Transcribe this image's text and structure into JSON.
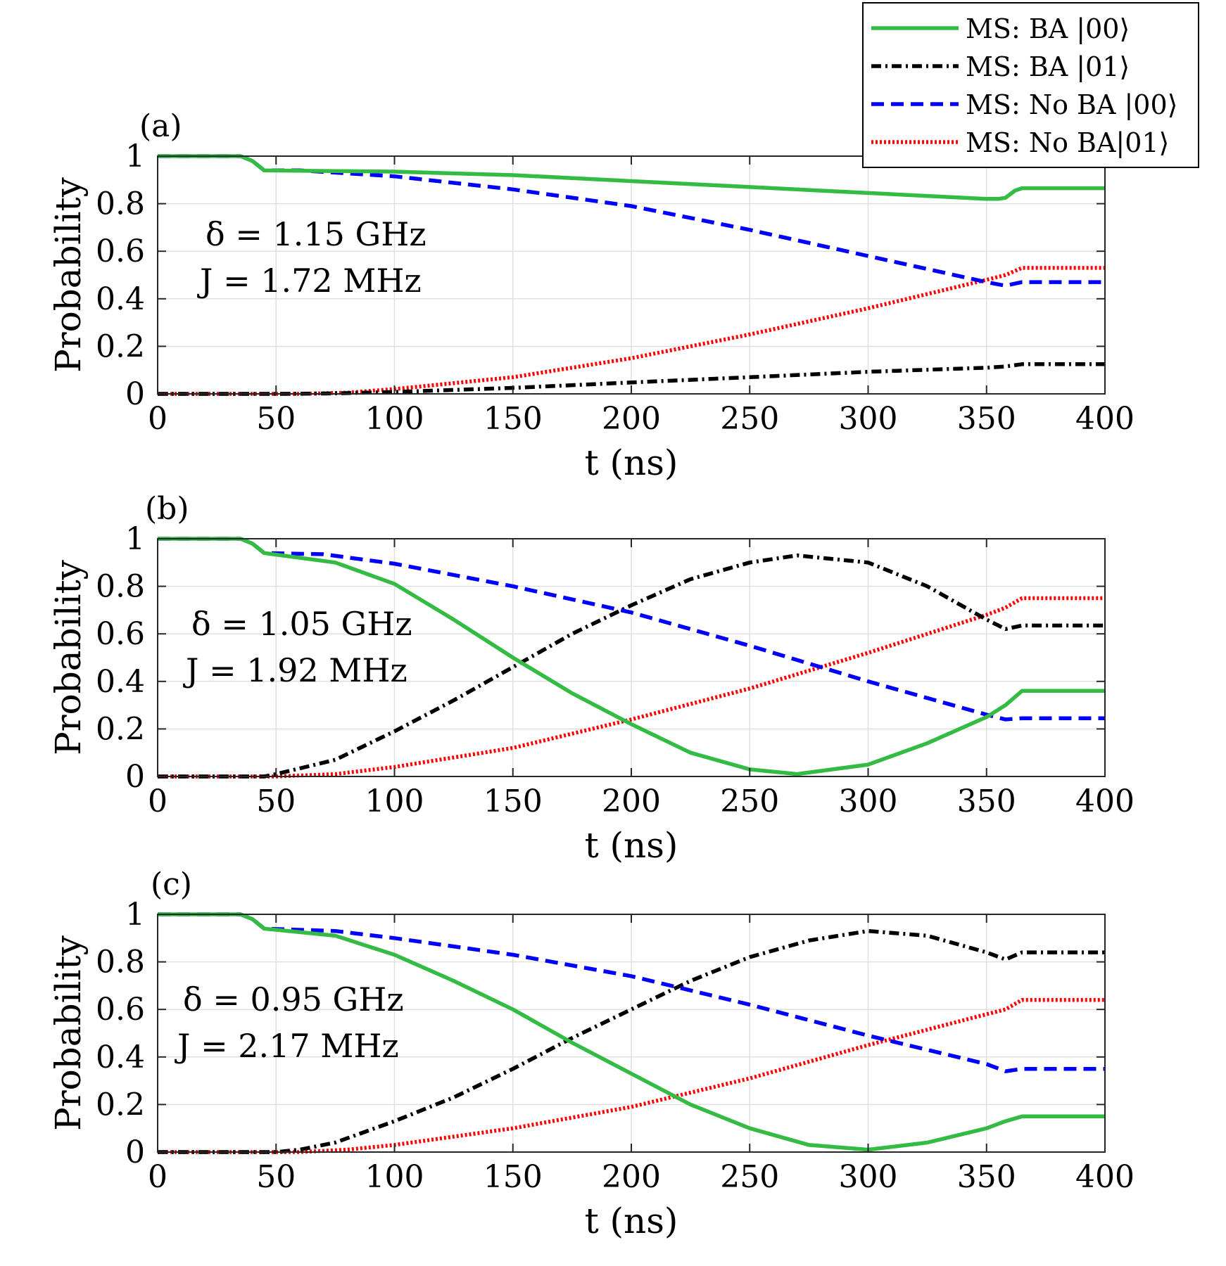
{
  "colors": {
    "ba00": "#33bb44",
    "ba01": "#000000",
    "noba00": "#0000ff",
    "noba01": "#ff0000",
    "grid": "#e0e0e0",
    "axis": "#262626"
  },
  "legend": {
    "placement": "top-right",
    "entries": [
      {
        "label": "MS: BA |00⟩",
        "series": "ba00",
        "style": "solid"
      },
      {
        "label": "MS: BA |01⟩",
        "series": "ba01",
        "style": "dashdot"
      },
      {
        "label": "MS: No BA |00⟩",
        "series": "noba00",
        "style": "dashed"
      },
      {
        "label": "MS: No BA|01⟩",
        "series": "noba01",
        "style": "dotted"
      }
    ]
  },
  "chart_data": [
    {
      "type": "line",
      "panel_label": "(a)",
      "annotation": {
        "delta": "δ = 1.15 GHz",
        "J": "J = 1.72 MHz"
      },
      "xlabel": "t (ns)",
      "ylabel": "Probability",
      "xlim": [
        0,
        400
      ],
      "ylim": [
        0,
        1
      ],
      "xticks": [
        0,
        50,
        100,
        150,
        200,
        250,
        300,
        350,
        400
      ],
      "yticks": [
        0,
        0.2,
        0.4,
        0.6,
        0.8,
        1
      ],
      "ytick_labels": [
        "0",
        "0.2",
        "0.4",
        "0.6",
        "0.8",
        "1"
      ],
      "grid": true,
      "series": [
        {
          "key": "ba00",
          "name": "MS: BA |00⟩",
          "x": [
            0,
            35,
            40,
            45,
            100,
            150,
            200,
            250,
            300,
            350,
            355,
            358,
            362,
            365,
            400
          ],
          "y": [
            1,
            1,
            0.98,
            0.94,
            0.935,
            0.92,
            0.895,
            0.87,
            0.845,
            0.82,
            0.82,
            0.825,
            0.855,
            0.865,
            0.865
          ]
        },
        {
          "key": "ba01",
          "name": "MS: BA |01⟩",
          "x": [
            0,
            50,
            75,
            100,
            150,
            200,
            250,
            300,
            350,
            358,
            365,
            400
          ],
          "y": [
            0,
            0,
            0.002,
            0.008,
            0.025,
            0.048,
            0.07,
            0.093,
            0.11,
            0.115,
            0.125,
            0.125
          ]
        },
        {
          "key": "noba00",
          "name": "MS: No BA |00⟩",
          "x": [
            0,
            35,
            40,
            45,
            60,
            100,
            150,
            200,
            250,
            300,
            350,
            358,
            365,
            400
          ],
          "y": [
            1,
            1,
            0.98,
            0.94,
            0.94,
            0.915,
            0.86,
            0.79,
            0.69,
            0.58,
            0.47,
            0.455,
            0.47,
            0.47
          ]
        },
        {
          "key": "noba01",
          "name": "MS: No BA|01⟩",
          "x": [
            0,
            60,
            80,
            100,
            150,
            200,
            250,
            300,
            350,
            358,
            365,
            400
          ],
          "y": [
            0,
            0,
            0.005,
            0.02,
            0.07,
            0.15,
            0.25,
            0.36,
            0.48,
            0.5,
            0.53,
            0.53
          ]
        }
      ]
    },
    {
      "type": "line",
      "panel_label": "(b)",
      "annotation": {
        "delta": "δ = 1.05 GHz",
        "J": "J = 1.92 MHz"
      },
      "xlabel": "t (ns)",
      "ylabel": "Probability",
      "xlim": [
        0,
        400
      ],
      "ylim": [
        0,
        1
      ],
      "xticks": [
        0,
        50,
        100,
        150,
        200,
        250,
        300,
        350,
        400
      ],
      "yticks": [
        0,
        0.2,
        0.4,
        0.6,
        0.8,
        1
      ],
      "ytick_labels": [
        "0",
        "0.2",
        "0.4",
        "0.6",
        "0.8",
        "1"
      ],
      "grid": true,
      "series": [
        {
          "key": "ba00",
          "name": "MS: BA |00⟩",
          "x": [
            0,
            35,
            40,
            45,
            75,
            100,
            125,
            150,
            175,
            200,
            225,
            250,
            270,
            300,
            325,
            350,
            358,
            365,
            400
          ],
          "y": [
            1,
            1,
            0.98,
            0.94,
            0.9,
            0.81,
            0.66,
            0.5,
            0.35,
            0.22,
            0.1,
            0.03,
            0.01,
            0.05,
            0.14,
            0.25,
            0.3,
            0.36,
            0.36
          ]
        },
        {
          "key": "ba01",
          "name": "MS: BA |01⟩",
          "x": [
            0,
            45,
            50,
            75,
            100,
            125,
            150,
            175,
            200,
            225,
            250,
            270,
            300,
            325,
            350,
            358,
            365,
            400
          ],
          "y": [
            0,
            0,
            0.01,
            0.07,
            0.19,
            0.32,
            0.46,
            0.6,
            0.72,
            0.83,
            0.9,
            0.93,
            0.9,
            0.8,
            0.66,
            0.62,
            0.635,
            0.635
          ]
        },
        {
          "key": "noba00",
          "name": "MS: No BA |00⟩",
          "x": [
            0,
            35,
            40,
            45,
            70,
            100,
            150,
            200,
            250,
            300,
            350,
            358,
            365,
            400
          ],
          "y": [
            1,
            1,
            0.98,
            0.94,
            0.935,
            0.895,
            0.8,
            0.69,
            0.55,
            0.4,
            0.26,
            0.24,
            0.245,
            0.245
          ]
        },
        {
          "key": "noba01",
          "name": "MS: No BA|01⟩",
          "x": [
            0,
            50,
            75,
            100,
            150,
            200,
            250,
            300,
            350,
            358,
            365,
            400
          ],
          "y": [
            0,
            0,
            0.01,
            0.04,
            0.12,
            0.24,
            0.37,
            0.52,
            0.68,
            0.71,
            0.75,
            0.75
          ]
        }
      ]
    },
    {
      "type": "line",
      "panel_label": "(c)",
      "annotation": {
        "delta": "δ = 0.95 GHz",
        "J": "J = 2.17 MHz"
      },
      "xlabel": "t (ns)",
      "ylabel": "Probability",
      "xlim": [
        0,
        400
      ],
      "ylim": [
        0,
        1
      ],
      "xticks": [
        0,
        50,
        100,
        150,
        200,
        250,
        300,
        350,
        400
      ],
      "yticks": [
        0,
        0.2,
        0.4,
        0.6,
        0.8,
        1
      ],
      "ytick_labels": [
        "0",
        "0.2",
        "0.4",
        "0.6",
        "0.8",
        "1"
      ],
      "grid": true,
      "series": [
        {
          "key": "ba00",
          "name": "MS: BA |00⟩",
          "x": [
            0,
            35,
            40,
            45,
            75,
            100,
            125,
            150,
            175,
            200,
            225,
            250,
            275,
            300,
            325,
            350,
            358,
            365,
            400
          ],
          "y": [
            1,
            1,
            0.98,
            0.94,
            0.91,
            0.83,
            0.72,
            0.6,
            0.46,
            0.33,
            0.2,
            0.1,
            0.03,
            0.01,
            0.04,
            0.1,
            0.13,
            0.15,
            0.15
          ]
        },
        {
          "key": "ba01",
          "name": "MS: BA |01⟩",
          "x": [
            0,
            50,
            60,
            75,
            100,
            125,
            150,
            175,
            200,
            225,
            250,
            275,
            300,
            325,
            350,
            358,
            365,
            400
          ],
          "y": [
            0,
            0,
            0.01,
            0.04,
            0.13,
            0.23,
            0.35,
            0.48,
            0.6,
            0.72,
            0.82,
            0.89,
            0.93,
            0.91,
            0.84,
            0.81,
            0.84,
            0.84
          ]
        },
        {
          "key": "noba00",
          "name": "MS: No BA |00⟩",
          "x": [
            0,
            35,
            40,
            45,
            75,
            100,
            150,
            200,
            250,
            300,
            350,
            358,
            365,
            400
          ],
          "y": [
            1,
            1,
            0.98,
            0.94,
            0.93,
            0.9,
            0.83,
            0.74,
            0.62,
            0.49,
            0.37,
            0.34,
            0.35,
            0.35
          ]
        },
        {
          "key": "noba01",
          "name": "MS: No BA|01⟩",
          "x": [
            0,
            60,
            80,
            100,
            150,
            200,
            250,
            300,
            350,
            358,
            365,
            400
          ],
          "y": [
            0,
            0,
            0.01,
            0.03,
            0.1,
            0.19,
            0.31,
            0.45,
            0.58,
            0.6,
            0.64,
            0.64
          ]
        }
      ]
    }
  ]
}
